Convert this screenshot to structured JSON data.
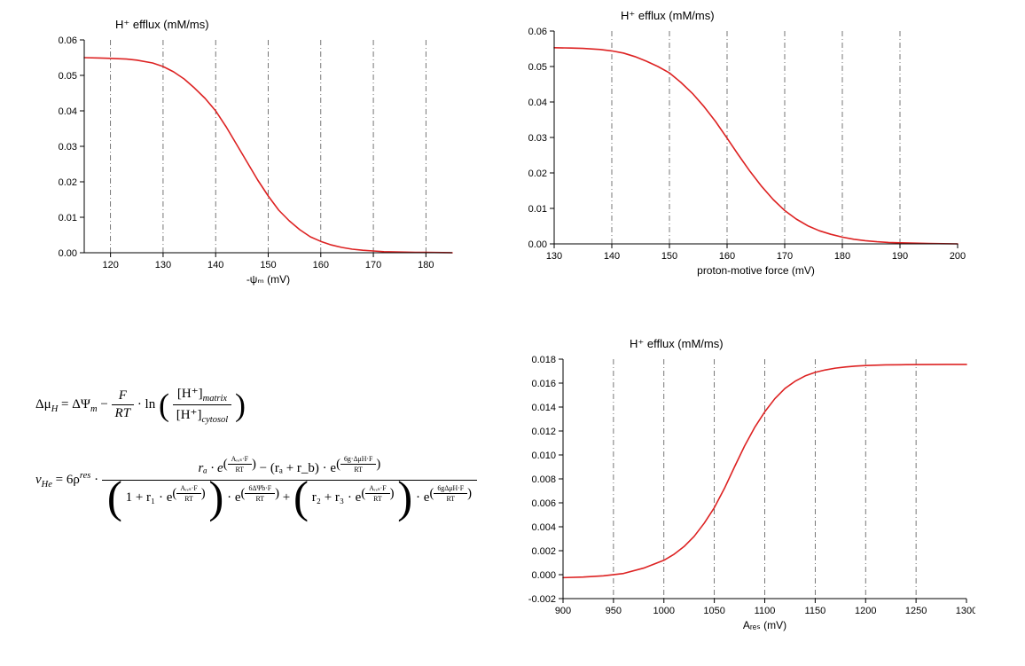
{
  "global": {
    "background_color": "#ffffff",
    "line_color": "#dd2222",
    "line_width": 1.6,
    "axis_color": "#000000",
    "grid_color": "#555555",
    "grid_dash": "6 3 1 3",
    "tick_font_size": 11,
    "title_font_size": 13,
    "axis_label_font_size": 12
  },
  "chart_tl": {
    "title": "H⁺ efflux (mM/ms)",
    "type": "line",
    "xlim": [
      115,
      185
    ],
    "ylim": [
      0.0,
      0.06
    ],
    "xticks": [
      120,
      130,
      140,
      150,
      160,
      170,
      180
    ],
    "yticks": [
      0.0,
      0.01,
      0.02,
      0.03,
      0.04,
      0.05,
      0.06
    ],
    "xtick_decimals": 0,
    "ytick_decimals": 2,
    "grid_x": [
      120,
      130,
      140,
      150,
      160,
      170,
      180
    ],
    "xlabel": "-ψₘ (mV)",
    "data": {
      "x": [
        115,
        118,
        120,
        123,
        125,
        128,
        130,
        132,
        134,
        136,
        138,
        140,
        142,
        144,
        146,
        148,
        150,
        152,
        154,
        156,
        158,
        160,
        162,
        164,
        166,
        168,
        170,
        172,
        175,
        178,
        180,
        185
      ],
      "y": [
        0.055,
        0.0549,
        0.0548,
        0.0546,
        0.0543,
        0.0535,
        0.0525,
        0.051,
        0.049,
        0.0464,
        0.0435,
        0.04,
        0.0355,
        0.0305,
        0.0255,
        0.0205,
        0.016,
        0.012,
        0.009,
        0.0065,
        0.0045,
        0.0032,
        0.0022,
        0.0015,
        0.001,
        0.0007,
        0.0005,
        0.0003,
        0.0002,
        0.0001,
        0.0001,
        0.0
      ]
    }
  },
  "chart_tr": {
    "title": "H⁺ efflux (mM/ms)",
    "type": "line",
    "xlim": [
      130,
      200
    ],
    "ylim": [
      0.0,
      0.06
    ],
    "xticks": [
      130,
      140,
      150,
      160,
      170,
      180,
      190,
      200
    ],
    "yticks": [
      0.0,
      0.01,
      0.02,
      0.03,
      0.04,
      0.05,
      0.06
    ],
    "xtick_decimals": 0,
    "ytick_decimals": 2,
    "grid_x": [
      140,
      150,
      160,
      170,
      180,
      190
    ],
    "xlabel": "proton-motive force (mV)",
    "data": {
      "x": [
        130,
        133,
        135,
        138,
        140,
        142,
        144,
        146,
        148,
        150,
        152,
        154,
        156,
        158,
        160,
        162,
        164,
        166,
        168,
        170,
        172,
        174,
        176,
        178,
        180,
        182,
        184,
        186,
        188,
        190,
        195,
        200
      ],
      "y": [
        0.0553,
        0.0552,
        0.0551,
        0.0548,
        0.0544,
        0.0538,
        0.0528,
        0.0515,
        0.05,
        0.0482,
        0.0455,
        0.0424,
        0.0387,
        0.0345,
        0.0298,
        0.025,
        0.0204,
        0.0162,
        0.0125,
        0.0094,
        0.007,
        0.0051,
        0.0037,
        0.0027,
        0.0019,
        0.0013,
        0.0009,
        0.0006,
        0.0004,
        0.0003,
        0.0001,
        0.0
      ]
    }
  },
  "chart_br": {
    "title": "H⁺ efflux (mM/ms)",
    "type": "line",
    "xlim": [
      900,
      1300
    ],
    "ylim": [
      -0.002,
      0.018
    ],
    "xticks": [
      900,
      950,
      1000,
      1050,
      1100,
      1150,
      1200,
      1250,
      1300
    ],
    "yticks": [
      -0.002,
      0.0,
      0.002,
      0.004,
      0.006,
      0.008,
      0.01,
      0.012,
      0.014,
      0.016,
      0.018
    ],
    "xtick_decimals": 0,
    "ytick_decimals": 3,
    "grid_x": [
      950,
      1000,
      1050,
      1100,
      1150,
      1200,
      1250
    ],
    "xlabel": "Aᵣₑₛ (mV)",
    "data": {
      "x": [
        900,
        920,
        940,
        960,
        980,
        1000,
        1010,
        1020,
        1030,
        1040,
        1050,
        1060,
        1070,
        1080,
        1090,
        1100,
        1110,
        1120,
        1130,
        1140,
        1150,
        1160,
        1170,
        1180,
        1190,
        1200,
        1220,
        1240,
        1260,
        1280,
        1300
      ],
      "y": [
        -0.00025,
        -0.0002,
        -0.0001,
        0.0001,
        0.00055,
        0.0012,
        0.0017,
        0.00235,
        0.0032,
        0.0043,
        0.0056,
        0.0072,
        0.009,
        0.01075,
        0.0123,
        0.0136,
        0.0147,
        0.01555,
        0.01615,
        0.0166,
        0.0169,
        0.0171,
        0.01725,
        0.01735,
        0.01742,
        0.01747,
        0.01752,
        0.01754,
        0.01755,
        0.01756,
        0.01756
      ]
    }
  },
  "equations": {
    "font_size": 15,
    "eq1_lhs": "Δμ",
    "eq1_sub": "H",
    "eq1_eq": " = ΔΨ",
    "eq1_sub2": "m",
    "eq1_minus": " − ",
    "eq1_F": "F",
    "eq1_RT": "RT",
    "eq1_ln": " · ln",
    "eq1_num": "[H⁺]",
    "eq1_num_sub": "matrix",
    "eq1_den": "[H⁺]",
    "eq1_den_sub": "cytosol",
    "eq2_lhs": "ν",
    "eq2_sub": "He",
    "eq2_eq": " = 6ρ",
    "eq2_sup": "res",
    "eq2_dot": " · ",
    "eq2_num_a": "rₐ · e",
    "eq2_exp1_top": "Aᵣₑₛ·F",
    "eq2_exp_bot": "RT",
    "eq2_num_mid": " − (rₐ + r_b) · e",
    "eq2_exp2_top": "6g·ΔμH·F",
    "eq2_den_a": "1 + r₁ · e",
    "eq2_den_b": " · e",
    "eq2_exp3_top": "6ΔΨb·F",
    "eq2_den_c": " + ",
    "eq2_den_d": "r₂ + r₃ · e",
    "eq2_exp4_top": "6gΔμH·F"
  }
}
